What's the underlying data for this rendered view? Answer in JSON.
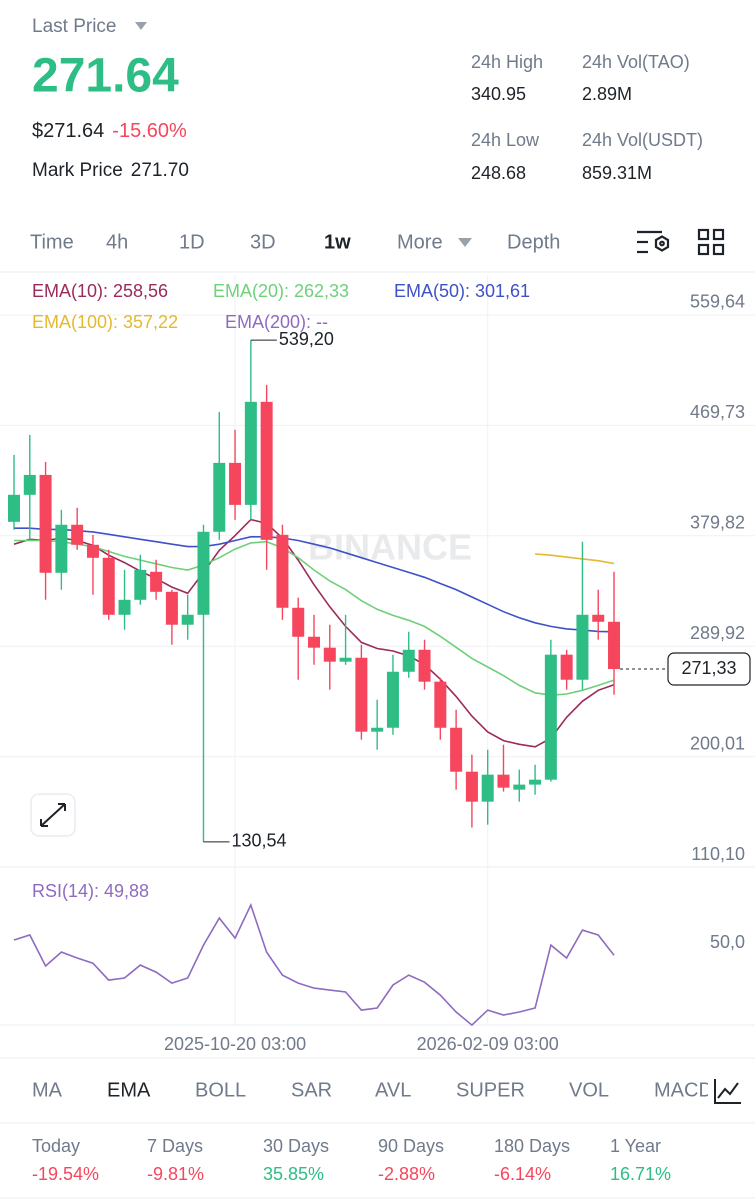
{
  "header": {
    "label": "Last Price",
    "price": "271.64",
    "usd": "$271.64",
    "change": "-15.60%",
    "mark_label": "Mark Price",
    "mark_price": "271.70",
    "stats": [
      {
        "label": "24h High",
        "value": "340.95"
      },
      {
        "label": "24h Vol(TAO)",
        "value": "2.89M"
      },
      {
        "label": "24h Low",
        "value": "248.68"
      },
      {
        "label": "24h Vol(USDT)",
        "value": "859.31M"
      }
    ]
  },
  "tabs": [
    "Time",
    "4h",
    "1D",
    "3D",
    "1w",
    "More",
    "Depth"
  ],
  "active_tab": 4,
  "chart_data": [
    {
      "type": "candlestick",
      "watermark": "BINANCE",
      "categories": [
        null,
        null,
        null,
        null,
        null,
        null,
        null,
        null,
        null,
        null,
        null,
        null,
        null,
        null,
        "2025-10-20 03:00",
        null,
        null,
        null,
        null,
        null,
        null,
        null,
        null,
        null,
        null,
        null,
        null,
        null,
        null,
        null,
        "2026-02-09 03:00",
        null,
        null,
        null,
        null,
        null,
        null,
        null,
        null
      ],
      "open": [
        391.2,
        413.2,
        429.4,
        349.7,
        388.8,
        372.5,
        361.9,
        315.5,
        327.7,
        350.5,
        334.2,
        307.4,
        315.5,
        383.1,
        439.2,
        405.0,
        488.9,
        380.6,
        321.2,
        297.6,
        288.7,
        277.3,
        280.5,
        220.3,
        223.5,
        269.1,
        287.0,
        261.0,
        223.5,
        187.7,
        163.3,
        185.3,
        173.1,
        177.2,
        181.2,
        283.0,
        262.6,
        315.5,
        309.8
      ],
      "high": [
        445.7,
        462.0,
        440.0,
        401.0,
        402.6,
        380.6,
        368.4,
        352.1,
        364.4,
        360.3,
        335.9,
        331.8,
        388.8,
        480.7,
        466.1,
        539.2,
        502.7,
        388.8,
        329.4,
        315.5,
        307.4,
        315.5,
        291.1,
        246.3,
        283.0,
        301.7,
        295.2,
        264.2,
        238.2,
        201.6,
        205.6,
        209.7,
        189.4,
        193.4,
        295.2,
        287.0,
        375.0,
        335.9,
        350.5
      ],
      "low": [
        384.7,
        376.5,
        327.7,
        335.9,
        368.4,
        331.8,
        311.4,
        303.3,
        323.7,
        327.7,
        291.1,
        295.2,
        130.54,
        376.5,
        392.8,
        392.8,
        352.1,
        311.4,
        262.6,
        274.8,
        254.5,
        274.8,
        213.8,
        205.6,
        217.8,
        264.2,
        254.5,
        213.8,
        173.1,
        142.2,
        144.6,
        171.5,
        163.3,
        169.0,
        179.6,
        254.5,
        254.5,
        295.2,
        250.4
      ],
      "close": [
        413.2,
        429.4,
        349.7,
        388.8,
        372.5,
        361.9,
        315.5,
        327.7,
        352.1,
        334.2,
        307.4,
        315.5,
        383.1,
        439.2,
        405.0,
        488.9,
        376.5,
        321.2,
        297.6,
        288.7,
        277.3,
        280.5,
        220.3,
        223.5,
        269.1,
        287.0,
        261.0,
        223.5,
        187.7,
        163.3,
        185.3,
        174.7,
        177.2,
        181.2,
        283.0,
        262.6,
        315.5,
        309.8,
        271.33
      ],
      "up_color": "#2ebd85",
      "down_color": "#f6465d",
      "high_label": "539,20",
      "low_label": "130,54",
      "last_label": "271,33",
      "ylim": [
        110.1,
        592.2
      ],
      "yticks": [
        {
          "value": 110.1,
          "label": "110,10"
        },
        {
          "value": 200.01,
          "label": "200,01"
        },
        {
          "value": 289.92,
          "label": "289,92"
        },
        {
          "value": 379.82,
          "label": "379,82"
        },
        {
          "value": 469.73,
          "label": "469,73"
        },
        {
          "value": 559.64,
          "label": "559,64"
        }
      ],
      "series": [
        {
          "name": "EMA(10): 258,56",
          "color": "#9c2a5a",
          "values": [
            373,
            377,
            376,
            378,
            376,
            372,
            364,
            358,
            351,
            345,
            338,
            333,
            350,
            368,
            380,
            393,
            390,
            378,
            360,
            340,
            322,
            306,
            293,
            288,
            286,
            282,
            275,
            263,
            249,
            233,
            220,
            213,
            210,
            208,
            215,
            232,
            245,
            254,
            258.56
          ]
        },
        {
          "name": "EMA(20): 262,33",
          "color": "#6fd07a",
          "values": [
            376,
            376,
            376,
            375,
            373,
            371,
            367,
            363,
            360,
            357,
            354,
            352,
            356,
            362,
            369,
            374,
            375,
            370,
            362,
            352,
            343,
            336,
            327,
            320,
            315,
            311,
            306,
            298,
            289,
            280,
            273,
            266,
            258,
            252,
            250,
            251,
            254,
            258,
            262.33
          ]
        },
        {
          "name": "EMA(50): 301,61",
          "color": "#3d52c8",
          "values": [
            386,
            386,
            385,
            385,
            384,
            383,
            381,
            379,
            377,
            375,
            373,
            371,
            371,
            373,
            376,
            379,
            379,
            378,
            376,
            373,
            370,
            366,
            362,
            358,
            354,
            350,
            346,
            341,
            336,
            330,
            324,
            318,
            313,
            309,
            306,
            304,
            303,
            302,
            301.61
          ]
        },
        {
          "name": "EMA(100): 357,22",
          "color": "#e5b92f",
          "values": [
            null,
            null,
            null,
            null,
            null,
            null,
            null,
            null,
            null,
            null,
            null,
            null,
            null,
            null,
            null,
            null,
            null,
            null,
            null,
            null,
            null,
            null,
            null,
            null,
            null,
            null,
            null,
            null,
            null,
            null,
            null,
            null,
            null,
            365,
            364,
            362.5,
            361,
            359.5,
            357.22
          ]
        },
        {
          "name": "EMA(200): --",
          "color": "#8e6bc0",
          "values": [
            null,
            null,
            null,
            null,
            null,
            null,
            null,
            null,
            null,
            null,
            null,
            null,
            null,
            null,
            null,
            null,
            null,
            null,
            null,
            null,
            null,
            null,
            null,
            null,
            null,
            null,
            null,
            null,
            null,
            null,
            null,
            null,
            null,
            null,
            null,
            null,
            null,
            null,
            null
          ]
        }
      ]
    },
    {
      "type": "line",
      "name": "RSI(14): 49,88",
      "color": "#8e6bc0",
      "values": [
        57.9,
        60.5,
        44.2,
        51.5,
        48.4,
        45.7,
        36.8,
        37.9,
        44.7,
        41.0,
        35.2,
        37.9,
        55.2,
        69.4,
        58.9,
        76.3,
        51.5,
        39.4,
        35.2,
        32.6,
        31.5,
        30.5,
        21.0,
        22.1,
        34.2,
        39.4,
        35.7,
        28.9,
        20.0,
        13.1,
        21.0,
        18.4,
        20.0,
        22.1,
        55.2,
        48.4,
        63.1,
        60.5,
        49.88
      ],
      "ylim": [
        0,
        100
      ],
      "yticks": [
        {
          "value": 50,
          "label": "50,0"
        }
      ]
    }
  ],
  "indicators": [
    "MA",
    "EMA",
    "BOLL",
    "SAR",
    "AVL",
    "SUPER",
    "VOL",
    "MACD"
  ],
  "active_indicator": 1,
  "performance": [
    {
      "label": "Today",
      "value": "-19.54%"
    },
    {
      "label": "7 Days",
      "value": "-9.81%"
    },
    {
      "label": "30 Days",
      "value": "35.85%"
    },
    {
      "label": "90 Days",
      "value": "-2.88%"
    },
    {
      "label": "180 Days",
      "value": "-6.14%"
    },
    {
      "label": "1 Year",
      "value": "16.71%"
    }
  ]
}
